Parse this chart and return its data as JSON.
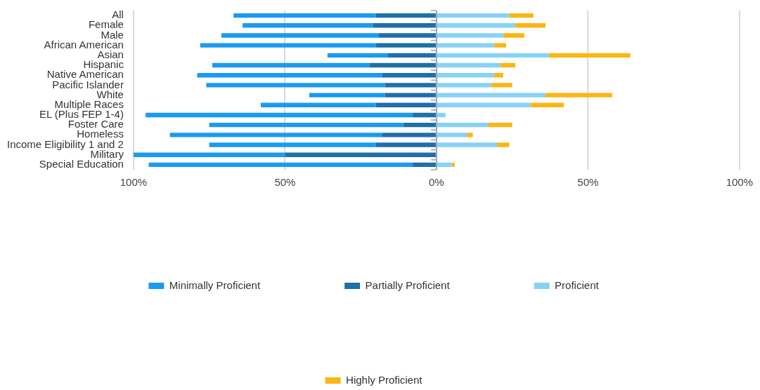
{
  "chart_data": {
    "type": "bar",
    "orientation": "horizontal",
    "stacked": true,
    "categories": [
      "All",
      "Female",
      "Male",
      "African American",
      "Asian",
      "Hispanic",
      "Native American",
      "Pacific Islander",
      "White",
      "Multiple Races",
      "EL (Plus FEP 1-4)",
      "Foster Care",
      "Homeless",
      "Income Eligibility 1 and 2",
      "Military",
      "Special Education"
    ],
    "series": [
      {
        "name": "Partially Proficient",
        "color": "#1f6fa8",
        "values": [
          -20,
          -21,
          -19,
          -20,
          -16,
          -22,
          -18,
          -17,
          -17,
          -20,
          -8,
          -11,
          -18,
          -20,
          -50,
          -8
        ]
      },
      {
        "name": "Minimally Proficient",
        "color": "#1a9bf0",
        "values": [
          -47,
          -43,
          -52,
          -58,
          -20,
          -52,
          -61,
          -59,
          -25,
          -38,
          -88,
          -64,
          -70,
          -55,
          -50,
          -87
        ]
      },
      {
        "name": "Proficient",
        "color": "#87d3f5",
        "values": [
          24,
          26,
          22,
          19,
          37,
          21,
          19,
          18,
          36,
          31,
          3,
          17,
          10,
          20,
          0,
          5
        ]
      },
      {
        "name": "Highly Proficient",
        "color": "#fbb614",
        "values": [
          8,
          10,
          7,
          4,
          27,
          5,
          3,
          7,
          22,
          11,
          0,
          8,
          2,
          4,
          0,
          1
        ]
      }
    ],
    "xlim": [
      -100,
      100
    ],
    "xticks": [
      {
        "value": -100,
        "label": "100%"
      },
      {
        "value": -50,
        "label": "50%"
      },
      {
        "value": 0,
        "label": "0%"
      },
      {
        "value": 50,
        "label": "50%"
      },
      {
        "value": 100,
        "label": "100%"
      }
    ],
    "grid": "x",
    "legend": "bottom"
  }
}
